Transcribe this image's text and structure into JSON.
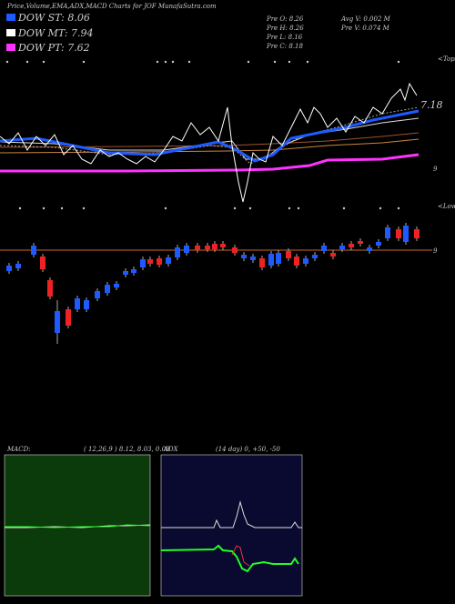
{
  "header": {
    "title": "Price,Volume,EMA,ADX,MACD Charts for JOF MunafaSutra.com"
  },
  "legend": [
    {
      "label": "DOW ST: 8.06",
      "color": "#1e5bff"
    },
    {
      "label": "DOW MT: 7.94",
      "color": "#ffffff"
    },
    {
      "label": "DOW PT: 7.62",
      "color": "#ff33ff"
    }
  ],
  "stats": [
    "Pre  O: 8.26",
    "Pre  H: 8.26",
    "Pre  L: 8.16",
    "Pre  C: 8.18",
    "Avg  V: 0.002  M",
    "Pre  V: 0.074  M"
  ],
  "price_panel": {
    "level_label": "7.18",
    "right_label": "9",
    "tops_label": "<Tops",
    "lows_label": "<Lows"
  },
  "candle_panel": {
    "right_label": "9"
  },
  "macd": {
    "name": "MACD:",
    "params": "( 12,26,9 ) 8.12, 8.03, 0.09"
  },
  "adx": {
    "name": "ADX",
    "params": "(14  day) 0, +50, -50"
  }
}
